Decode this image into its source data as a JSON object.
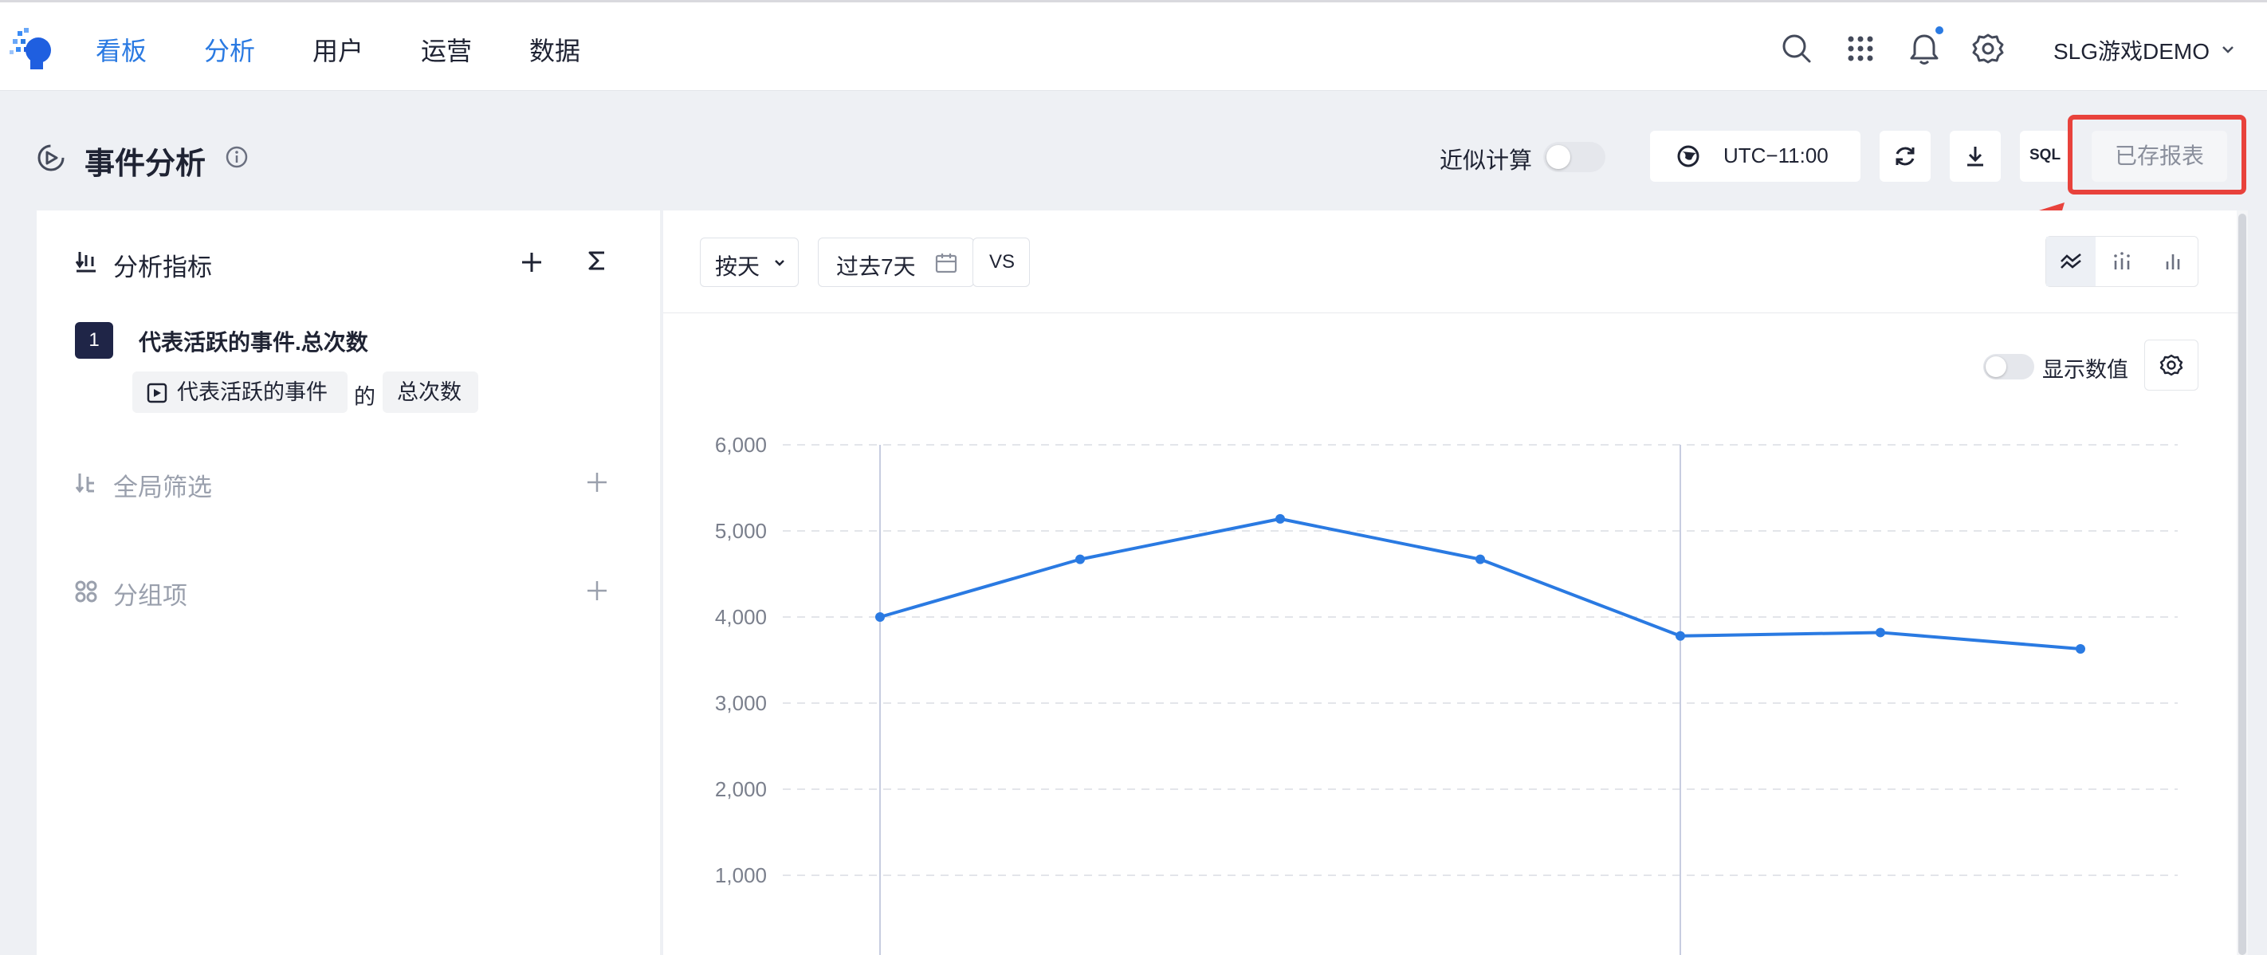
{
  "nav": {
    "items": [
      {
        "label": "看板",
        "active": true
      },
      {
        "label": "分析",
        "active": true
      },
      {
        "label": "用户",
        "active": false
      },
      {
        "label": "运营",
        "active": false
      },
      {
        "label": "数据",
        "active": false
      }
    ],
    "project": "SLG游戏DEMO",
    "accent_color": "#2a7ae2"
  },
  "header": {
    "title": "事件分析",
    "approx_label": "近似计算",
    "approx_enabled": false,
    "timezone": "UTC−11:00",
    "sql_label": "SQL",
    "saved_reports_label": "已存报表"
  },
  "left_panel": {
    "metrics_title": "分析指标",
    "metrics": [
      {
        "index": "1",
        "name": "代表活跃的事件.总次数",
        "event": "代表活跃的事件",
        "connector": "的",
        "measure": "总次数"
      }
    ],
    "filter_title": "全局筛选",
    "group_title": "分组项"
  },
  "controls": {
    "granularity": "按天",
    "date_range": "过去7天",
    "compare_label": "VS",
    "show_values_label": "显示数值",
    "show_values_enabled": false
  },
  "chart_data": {
    "type": "line",
    "ylim": [
      0,
      6000
    ],
    "yticks": [
      "6,000",
      "5,000",
      "4,000",
      "3,000",
      "2,000",
      "1,000"
    ],
    "series": [
      {
        "values": [
          4000,
          4670,
          5140,
          4670,
          3780,
          3820,
          3630
        ],
        "color": "#2a7ae2"
      }
    ],
    "grid": true
  }
}
